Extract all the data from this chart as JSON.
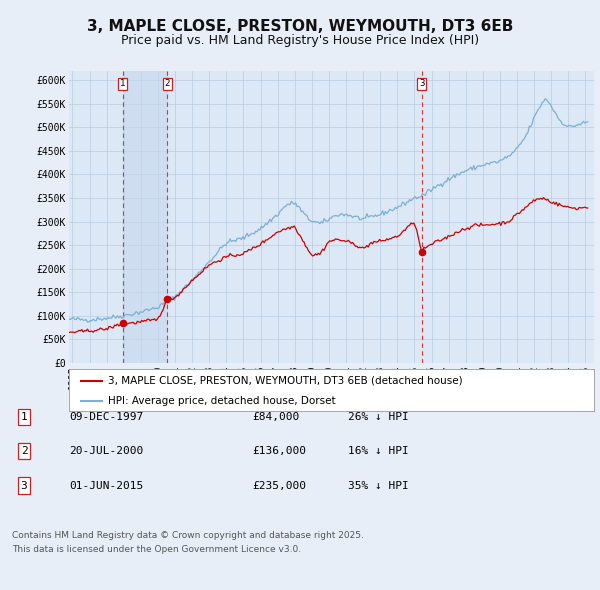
{
  "title": "3, MAPLE CLOSE, PRESTON, WEYMOUTH, DT3 6EB",
  "subtitle": "Price paid vs. HM Land Registry's House Price Index (HPI)",
  "legend_line1": "3, MAPLE CLOSE, PRESTON, WEYMOUTH, DT3 6EB (detached house)",
  "legend_line2": "HPI: Average price, detached house, Dorset",
  "footer1": "Contains HM Land Registry data © Crown copyright and database right 2025.",
  "footer2": "This data is licensed under the Open Government Licence v3.0.",
  "transactions": [
    {
      "label": "1",
      "date": "09-DEC-1997",
      "price": 84000,
      "hpi_diff": "26% ↓ HPI",
      "x_year": 1997.94
    },
    {
      "label": "2",
      "date": "20-JUL-2000",
      "price": 136000,
      "hpi_diff": "16% ↓ HPI",
      "x_year": 2000.55
    },
    {
      "label": "3",
      "date": "01-JUN-2015",
      "price": 235000,
      "hpi_diff": "35% ↓ HPI",
      "x_year": 2015.42
    }
  ],
  "sale_prices": [
    84000,
    136000,
    235000
  ],
  "background_color": "#e8eef7",
  "plot_bg_color": "#dce8f5",
  "grid_color": "#b8cce0",
  "hpi_color": "#7ab0d4",
  "price_color": "#cc0000",
  "vline_color": "#dd3333",
  "shade_color": "#c5d8ee",
  "ylim": [
    0,
    620000
  ],
  "ytick_labels": [
    "£0",
    "£50K",
    "£100K",
    "£150K",
    "£200K",
    "£250K",
    "£300K",
    "£350K",
    "£400K",
    "£450K",
    "£500K",
    "£550K",
    "£600K"
  ],
  "ytick_values": [
    0,
    50000,
    100000,
    150000,
    200000,
    250000,
    300000,
    350000,
    400000,
    450000,
    500000,
    550000,
    600000
  ],
  "xlim_start": 1994.8,
  "xlim_end": 2025.5,
  "title_fontsize": 11,
  "subtitle_fontsize": 9,
  "tick_fontsize": 7,
  "legend_fontsize": 8,
  "table_fontsize": 8,
  "footer_fontsize": 6.5
}
